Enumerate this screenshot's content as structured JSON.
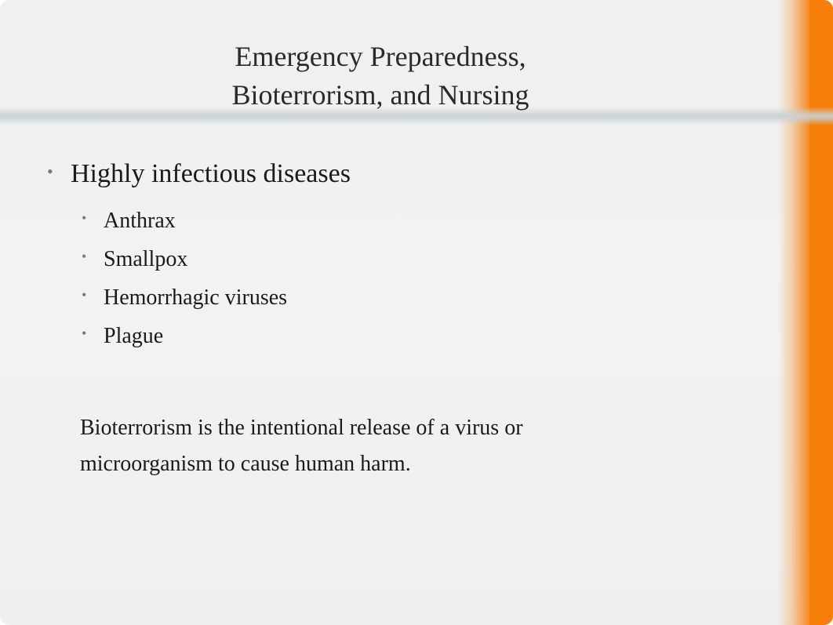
{
  "colors": {
    "background": "#f1f1f1",
    "accent": "#f77e08",
    "bullet": "#6a7d92",
    "text": "#1a1a1a",
    "title_text": "#2a2a2a",
    "divider": "#c8d2d6"
  },
  "typography": {
    "family": "Times New Roman",
    "title_fontsize": 36,
    "body_fontsize_lvl1": 34,
    "body_fontsize_lvl2": 28,
    "paragraph_fontsize": 28
  },
  "title": {
    "line1": "Emergency Preparedness,",
    "line2": "Bioterrorism, and Nursing"
  },
  "content": {
    "heading": "Highly infectious diseases",
    "subitems": [
      "Anthrax",
      "Smallpox",
      "Hemorrhagic viruses",
      "Plague"
    ],
    "paragraph": "Bioterrorism is the intentional release of a virus or microorganism to cause human harm."
  }
}
